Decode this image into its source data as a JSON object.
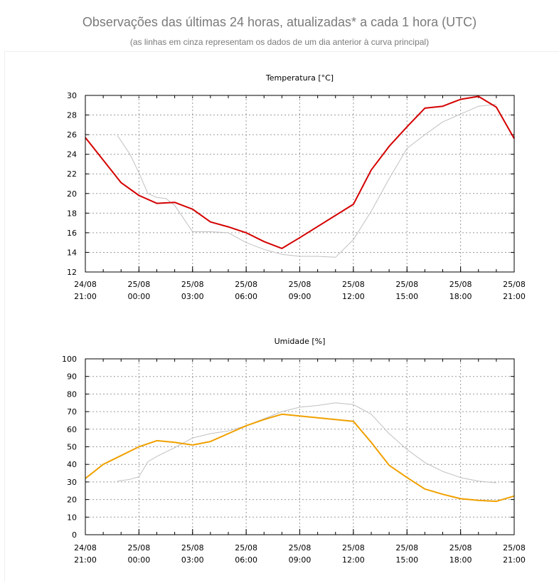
{
  "header": {
    "title": "Observações das últimas 24 horas, atualizadas* a cada 1 hora (UTC)",
    "subtitle": "(as linhas em cinza representam os dados de um dia anterior à curva principal)"
  },
  "x_ticks": [
    {
      "date": "24/08",
      "time": "21:00"
    },
    {
      "date": "25/08",
      "time": "00:00"
    },
    {
      "date": "25/08",
      "time": "03:00"
    },
    {
      "date": "25/08",
      "time": "06:00"
    },
    {
      "date": "25/08",
      "time": "09:00"
    },
    {
      "date": "25/08",
      "time": "12:00"
    },
    {
      "date": "25/08",
      "time": "15:00"
    },
    {
      "date": "25/08",
      "time": "18:00"
    },
    {
      "date": "25/08",
      "time": "21:00"
    }
  ],
  "chart_data": [
    {
      "type": "line",
      "title": "Temperatura [°C]",
      "x_unit": "hours",
      "xlim": [
        0,
        24
      ],
      "ylim": [
        12,
        30
      ],
      "yticks": [
        12,
        14,
        16,
        18,
        20,
        22,
        24,
        26,
        28,
        30
      ],
      "grid": true,
      "series": [
        {
          "color": "#d40000",
          "x": [
            0,
            2,
            3,
            4,
            5,
            6,
            7,
            8,
            9,
            10,
            11,
            12,
            15,
            16,
            17,
            18,
            19,
            20,
            21,
            22,
            23,
            24
          ],
          "values": [
            25.7,
            21.1,
            19.8,
            19.0,
            19.1,
            18.4,
            17.1,
            16.6,
            16.0,
            15.1,
            14.4,
            15.5,
            18.9,
            22.4,
            24.8,
            26.8,
            28.7,
            28.9,
            29.6,
            29.9,
            28.8,
            25.6
          ]
        },
        {
          "color": "#c0c0c0",
          "x": [
            1.8,
            2.5,
            3,
            3.5,
            4,
            4.5,
            5,
            6,
            7,
            8,
            9,
            10,
            11,
            12,
            13,
            14,
            15,
            16,
            17,
            18,
            19,
            20,
            21,
            22,
            23
          ],
          "values": [
            25.9,
            24.0,
            22.1,
            20.0,
            19.6,
            19.5,
            18.8,
            16.1,
            16.1,
            16.0,
            15.0,
            14.3,
            13.8,
            13.6,
            13.6,
            13.5,
            15.3,
            18.2,
            21.5,
            24.6,
            26.0,
            27.3,
            28.1,
            28.9,
            29.1
          ]
        }
      ]
    },
    {
      "type": "line",
      "title": "Umidade [%]",
      "x_unit": "hours",
      "xlim": [
        0,
        24
      ],
      "ylim": [
        0,
        100
      ],
      "yticks": [
        0,
        10,
        20,
        30,
        40,
        50,
        60,
        70,
        80,
        90,
        100
      ],
      "grid": true,
      "series": [
        {
          "color": "#f0a000",
          "x": [
            0,
            1,
            2,
            3,
            4,
            5,
            6,
            7,
            8,
            9,
            10,
            11,
            12,
            13,
            14,
            15,
            16,
            17,
            18,
            19,
            20,
            21,
            22,
            23,
            24
          ],
          "values": [
            32,
            40,
            45,
            50,
            53.5,
            52.5,
            51,
            53,
            57.5,
            62,
            65.5,
            68.5,
            67.5,
            66.5,
            65.5,
            64.5,
            52.5,
            39.5,
            32.5,
            26,
            23,
            20.5,
            19.5,
            19,
            22
          ]
        },
        {
          "color": "#c0c0c0",
          "x": [
            1.8,
            2.5,
            3,
            3.5,
            4,
            5,
            6,
            7,
            8,
            9,
            10,
            11,
            12,
            13,
            14,
            15,
            16,
            17,
            18,
            19,
            20,
            21,
            22,
            23
          ],
          "values": [
            30.5,
            31.5,
            33,
            41.5,
            44.5,
            49.5,
            55,
            57.5,
            59,
            62,
            66,
            70,
            72.5,
            73.5,
            75,
            74,
            68.5,
            57.5,
            48.5,
            41,
            36,
            32.5,
            30.5,
            29.5
          ]
        }
      ]
    }
  ]
}
